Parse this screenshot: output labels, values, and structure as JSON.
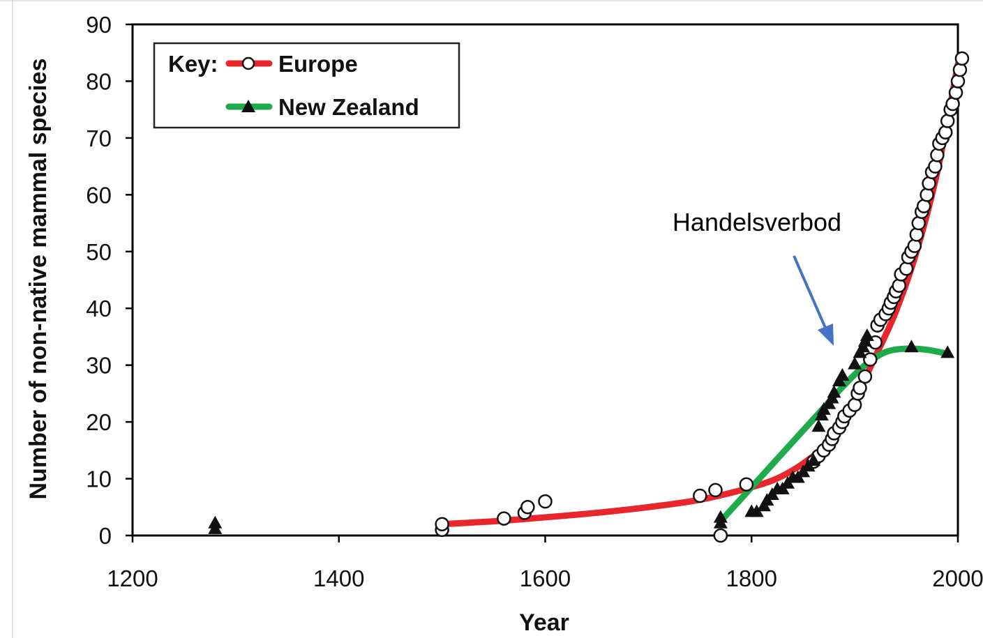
{
  "chart_data": {
    "type": "scatter",
    "xlabel": "Year",
    "ylabel": "Number of non-native mammal species",
    "xlim": [
      1200,
      2000
    ],
    "ylim": [
      0,
      90
    ],
    "xticks": [
      1200,
      1400,
      1600,
      1800,
      2000
    ],
    "yticks": [
      0,
      10,
      20,
      30,
      40,
      50,
      60,
      70,
      80,
      90
    ],
    "grid": false,
    "legend": {
      "title": "Key:",
      "placement": "top-left",
      "entries": [
        "Europe",
        "New Zealand"
      ]
    },
    "series": [
      {
        "name": "Europe",
        "marker": "circle",
        "color": "#e8262c",
        "points": [
          [
            1500,
            1
          ],
          [
            1500,
            2
          ],
          [
            1560,
            3
          ],
          [
            1580,
            4
          ],
          [
            1583,
            5
          ],
          [
            1600,
            6
          ],
          [
            1750,
            7
          ],
          [
            1765,
            8
          ],
          [
            1770,
            0
          ],
          [
            1795,
            9
          ],
          [
            1860,
            13
          ],
          [
            1865,
            14
          ],
          [
            1870,
            15
          ],
          [
            1875,
            16
          ],
          [
            1878,
            17
          ],
          [
            1880,
            18
          ],
          [
            1885,
            19
          ],
          [
            1888,
            20
          ],
          [
            1890,
            21
          ],
          [
            1895,
            22
          ],
          [
            1900,
            23
          ],
          [
            1903,
            25
          ],
          [
            1905,
            26
          ],
          [
            1910,
            28
          ],
          [
            1915,
            31
          ],
          [
            1920,
            34
          ],
          [
            1922,
            37
          ],
          [
            1925,
            38
          ],
          [
            1930,
            39
          ],
          [
            1933,
            40
          ],
          [
            1935,
            41
          ],
          [
            1938,
            42
          ],
          [
            1940,
            43
          ],
          [
            1943,
            44
          ],
          [
            1945,
            46
          ],
          [
            1950,
            47
          ],
          [
            1952,
            49
          ],
          [
            1955,
            50
          ],
          [
            1958,
            51
          ],
          [
            1960,
            53
          ],
          [
            1962,
            55
          ],
          [
            1965,
            57
          ],
          [
            1967,
            58
          ],
          [
            1970,
            60
          ],
          [
            1972,
            62
          ],
          [
            1975,
            64
          ],
          [
            1978,
            65
          ],
          [
            1980,
            67
          ],
          [
            1982,
            69
          ],
          [
            1985,
            70
          ],
          [
            1988,
            71
          ],
          [
            1990,
            73
          ],
          [
            1993,
            75
          ],
          [
            1995,
            76
          ],
          [
            1998,
            78
          ],
          [
            2000,
            80
          ],
          [
            2002,
            82
          ],
          [
            2004,
            84
          ]
        ],
        "fit": [
          [
            1500,
            2
          ],
          [
            1550,
            2.5
          ],
          [
            1600,
            3.2
          ],
          [
            1650,
            4
          ],
          [
            1700,
            5
          ],
          [
            1750,
            6.3
          ],
          [
            1800,
            8.5
          ],
          [
            1830,
            10.5
          ],
          [
            1860,
            14
          ],
          [
            1880,
            17.5
          ],
          [
            1900,
            24
          ],
          [
            1920,
            31.5
          ],
          [
            1940,
            39.5
          ],
          [
            1960,
            50
          ],
          [
            1980,
            64
          ],
          [
            2000,
            83
          ]
        ]
      },
      {
        "name": "New Zealand",
        "marker": "triangle",
        "color": "#1faa4b",
        "points": [
          [
            1280,
            1
          ],
          [
            1280,
            2
          ],
          [
            1770,
            2
          ],
          [
            1770,
            3
          ],
          [
            1800,
            4
          ],
          [
            1805,
            4
          ],
          [
            1812,
            5
          ],
          [
            1815,
            6
          ],
          [
            1820,
            7
          ],
          [
            1825,
            8
          ],
          [
            1830,
            8
          ],
          [
            1835,
            9
          ],
          [
            1840,
            10
          ],
          [
            1845,
            10
          ],
          [
            1850,
            11
          ],
          [
            1855,
            12
          ],
          [
            1860,
            13
          ],
          [
            1865,
            19
          ],
          [
            1868,
            21
          ],
          [
            1870,
            22
          ],
          [
            1875,
            23
          ],
          [
            1878,
            24
          ],
          [
            1880,
            25
          ],
          [
            1885,
            27
          ],
          [
            1888,
            28
          ],
          [
            1900,
            30
          ],
          [
            1905,
            32
          ],
          [
            1908,
            33
          ],
          [
            1910,
            34
          ],
          [
            1912,
            35
          ],
          [
            1955,
            33
          ],
          [
            1990,
            32
          ]
        ],
        "fit": [
          [
            1770,
            2.5
          ],
          [
            1790,
            6.5
          ],
          [
            1810,
            10.5
          ],
          [
            1830,
            14.5
          ],
          [
            1850,
            18.5
          ],
          [
            1870,
            22.5
          ],
          [
            1890,
            26.5
          ],
          [
            1910,
            30
          ],
          [
            1930,
            32.3
          ],
          [
            1950,
            32.9
          ],
          [
            1970,
            32.7
          ],
          [
            1990,
            32
          ]
        ]
      }
    ],
    "annotations": [
      {
        "text": "Handelsverbod",
        "arrow_to": [
          1895,
          33
        ]
      }
    ]
  }
}
